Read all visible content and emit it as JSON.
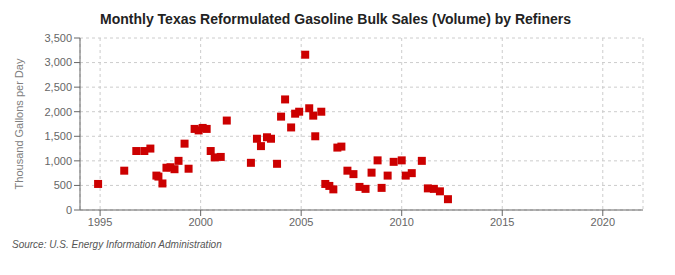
{
  "chart_data": {
    "type": "scatter",
    "title": "Monthly Texas Reformulated Gasoline Bulk Sales (Volume) by Refiners",
    "ylabel": "Thousand Gallons per Day",
    "annotations": [
      "Source: U.S. Energy Information Administration"
    ],
    "color": "#cc0000",
    "marker": "square",
    "grid": true,
    "xlim": [
      1994,
      2022
    ],
    "ylim": [
      0,
      3500
    ],
    "xticks": [
      1995,
      2000,
      2005,
      2010,
      2015,
      2020
    ],
    "yticks": [
      0,
      500,
      {
        "value": 1000,
        "label": "1,000"
      },
      {
        "value": 1500,
        "label": "1,500"
      },
      {
        "value": 2000,
        "label": "2,000"
      },
      {
        "value": 2500,
        "label": "2,500"
      },
      {
        "value": 3000,
        "label": "3,000"
      },
      {
        "value": 3500,
        "label": "3,500"
      }
    ],
    "x": [
      1994.9,
      1996.2,
      1996.8,
      1997.2,
      1997.5,
      1997.8,
      1997.9,
      1998.1,
      1998.3,
      1998.5,
      1998.7,
      1998.9,
      1999.2,
      1999.4,
      1999.7,
      1999.9,
      2000.1,
      2000.3,
      2000.5,
      2000.7,
      2001.0,
      2001.3,
      2002.5,
      2002.8,
      2003.0,
      2003.3,
      2003.5,
      2003.8,
      2004.0,
      2004.2,
      2004.5,
      2004.7,
      2004.9,
      2005.2,
      2005.4,
      2005.6,
      2005.7,
      2006.0,
      2006.2,
      2006.4,
      2006.6,
      2006.8,
      2007.0,
      2007.3,
      2007.6,
      2007.9,
      2008.2,
      2008.5,
      2008.8,
      2009.0,
      2009.3,
      2009.6,
      2010.0,
      2010.2,
      2010.5,
      2011.0,
      2011.3,
      2011.6,
      2011.9,
      2012.3
    ],
    "values": [
      530,
      800,
      1200,
      1200,
      1250,
      700,
      680,
      540,
      860,
      870,
      830,
      1000,
      1350,
      840,
      1650,
      1620,
      1670,
      1650,
      1200,
      1070,
      1080,
      1820,
      960,
      1450,
      1300,
      1480,
      1450,
      940,
      1900,
      2250,
      1680,
      1960,
      2000,
      3160,
      2070,
      1920,
      1500,
      2000,
      530,
      490,
      420,
      1270,
      1290,
      800,
      730,
      470,
      430,
      760,
      1010,
      450,
      700,
      980,
      1010,
      700,
      750,
      1000,
      440,
      430,
      380,
      220
    ]
  }
}
